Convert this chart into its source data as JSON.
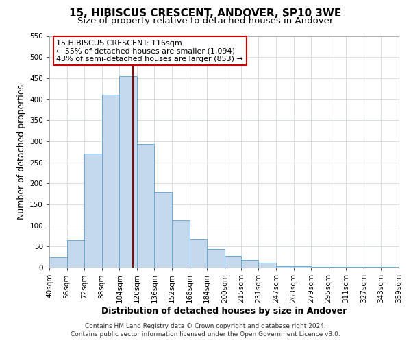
{
  "title": "15, HIBISCUS CRESCENT, ANDOVER, SP10 3WE",
  "subtitle": "Size of property relative to detached houses in Andover",
  "xlabel": "Distribution of detached houses by size in Andover",
  "ylabel": "Number of detached properties",
  "bar_color": "#c5d9ee",
  "bar_edge_color": "#6aaad4",
  "background_color": "#ffffff",
  "grid_color": "#d0d8e0",
  "annotation_box_edge_color": "#cc0000",
  "vline_color": "#990000",
  "bin_edges": [
    40,
    56,
    72,
    88,
    104,
    120,
    136,
    152,
    168,
    184,
    200,
    215,
    231,
    247,
    263,
    279,
    295,
    311,
    327,
    343,
    359
  ],
  "bar_heights": [
    25,
    65,
    270,
    410,
    455,
    293,
    180,
    113,
    67,
    44,
    27,
    18,
    11,
    4,
    4,
    2,
    2,
    2,
    2,
    2
  ],
  "vline_x": 116,
  "ylim": [
    0,
    550
  ],
  "yticks": [
    0,
    50,
    100,
    150,
    200,
    250,
    300,
    350,
    400,
    450,
    500,
    550
  ],
  "xtick_labels": [
    "40sqm",
    "56sqm",
    "72sqm",
    "88sqm",
    "104sqm",
    "120sqm",
    "136sqm",
    "152sqm",
    "168sqm",
    "184sqm",
    "200sqm",
    "215sqm",
    "231sqm",
    "247sqm",
    "263sqm",
    "279sqm",
    "295sqm",
    "311sqm",
    "327sqm",
    "343sqm",
    "359sqm"
  ],
  "annotation_title": "15 HIBISCUS CRESCENT: 116sqm",
  "annotation_line1": "← 55% of detached houses are smaller (1,094)",
  "annotation_line2": "43% of semi-detached houses are larger (853) →",
  "footer_line1": "Contains HM Land Registry data © Crown copyright and database right 2024.",
  "footer_line2": "Contains public sector information licensed under the Open Government Licence v3.0.",
  "title_fontsize": 11,
  "subtitle_fontsize": 9.5,
  "xlabel_fontsize": 9,
  "ylabel_fontsize": 9,
  "tick_fontsize": 7.5,
  "annot_fontsize": 8,
  "footer_fontsize": 6.5
}
